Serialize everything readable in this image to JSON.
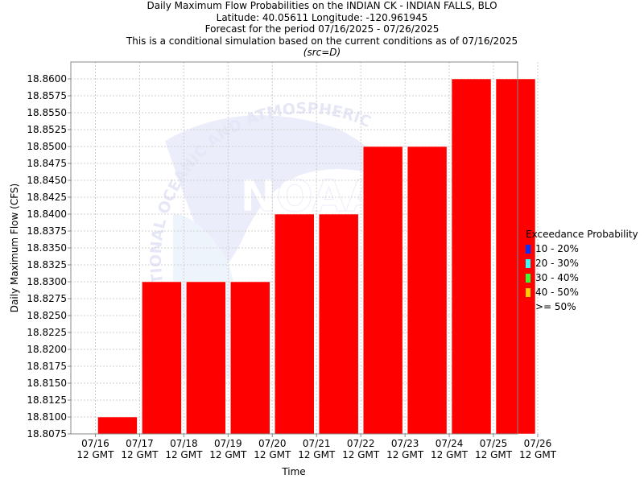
{
  "header": {
    "line1": "Daily Maximum Flow Probabilities on the INDIAN CK - INDIAN FALLS, BLO",
    "line2": "Latitude: 40.05611 Longitude: -120.961945",
    "line3": "Forecast for the period 07/16/2025 - 07/26/2025",
    "line4": "This is a conditional simulation based on the current conditions as of 07/16/2025",
    "line5": "(src=D)"
  },
  "watermark": {
    "text": "NATIONAL OCEANIC AND ATMOSPHERIC",
    "logo_text": "NOAA"
  },
  "chart_data": {
    "type": "bar",
    "ylabel": "Daily Maximum Flow (CFS)",
    "xlabel": "Time",
    "ylim": [
      18.8075,
      18.8625
    ],
    "yticks": [
      "18.8075",
      "18.8100",
      "18.8125",
      "18.8150",
      "18.8175",
      "18.8200",
      "18.8225",
      "18.8250",
      "18.8275",
      "18.8300",
      "18.8325",
      "18.8350",
      "18.8375",
      "18.8400",
      "18.8425",
      "18.8450",
      "18.8475",
      "18.8500",
      "18.8525",
      "18.8550",
      "18.8575",
      "18.8600"
    ],
    "xticks": [
      [
        "07/16",
        "12 GMT"
      ],
      [
        "07/17",
        "12 GMT"
      ],
      [
        "07/18",
        "12 GMT"
      ],
      [
        "07/19",
        "12 GMT"
      ],
      [
        "07/20",
        "12 GMT"
      ],
      [
        "07/21",
        "12 GMT"
      ],
      [
        "07/22",
        "12 GMT"
      ],
      [
        "07/23",
        "12 GMT"
      ],
      [
        "07/24",
        "12 GMT"
      ],
      [
        "07/25",
        "12 GMT"
      ],
      [
        "07/26",
        "12 GMT"
      ]
    ],
    "bars": [
      18.81,
      18.83,
      18.83,
      18.83,
      18.84,
      18.84,
      18.85,
      18.85,
      18.86,
      18.86
    ],
    "bar_color": "#ff0000",
    "grid": true,
    "legend_position": "right",
    "legend": {
      "title": "Exceedance Probability",
      "items": [
        {
          "label": "10 - 20%",
          "color": "#0033ff"
        },
        {
          "label": "20 - 30%",
          "color": "#33ffff"
        },
        {
          "label": "30 - 40%",
          "color": "#33ff33"
        },
        {
          "label": "40 - 50%",
          "color": "#ffcc00"
        },
        {
          "label": ">= 50%",
          "color": "#ff0000"
        }
      ]
    }
  }
}
